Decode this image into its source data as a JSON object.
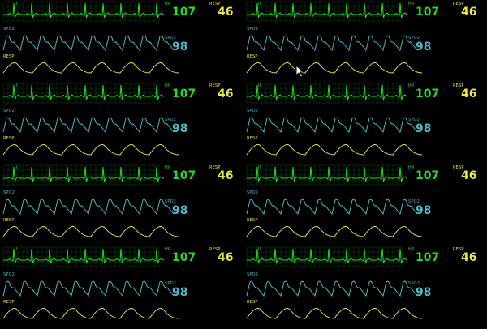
{
  "colors": {
    "ecg": "#22dd22",
    "grid": "#0b4a14",
    "spo2": "#4fb8c4",
    "resp": "#e8e84a",
    "background": "#000000"
  },
  "panels": [
    {
      "ecg_lead": "II",
      "hr_label": "HR",
      "hr_value": "107",
      "resp_label": "RESP",
      "resp_value": "46",
      "spo2_label": "SPO2",
      "spo2_value": "98",
      "resp_wave_label": "RESP"
    },
    {
      "ecg_lead": "II",
      "hr_label": "HR",
      "hr_value": "107",
      "resp_label": "RESP",
      "resp_value": "46",
      "spo2_label": "SPO2",
      "spo2_value": "98",
      "resp_wave_label": "RESP"
    },
    {
      "ecg_lead": "II",
      "hr_label": "HR",
      "hr_value": "107",
      "resp_label": "RESP",
      "resp_value": "46",
      "spo2_label": "SPO2",
      "spo2_value": "98",
      "resp_wave_label": "RESP"
    },
    {
      "ecg_lead": "II",
      "hr_label": "HR",
      "hr_value": "107",
      "resp_label": "RESP",
      "resp_value": "46",
      "spo2_label": "SPO2",
      "spo2_value": "98",
      "resp_wave_label": "RESP"
    },
    {
      "ecg_lead": "II",
      "hr_label": "HR",
      "hr_value": "107",
      "resp_label": "RESP",
      "resp_value": "46",
      "spo2_label": "SPO2",
      "spo2_value": "98",
      "resp_wave_label": "RESP"
    },
    {
      "ecg_lead": "II",
      "hr_label": "HR",
      "hr_value": "107",
      "resp_label": "RESP",
      "resp_value": "46",
      "spo2_label": "SPO2",
      "spo2_value": "98",
      "resp_wave_label": "RESP"
    },
    {
      "ecg_lead": "II",
      "hr_label": "HR",
      "hr_value": "107",
      "resp_label": "RESP",
      "resp_value": "46",
      "spo2_label": "SPO2",
      "spo2_value": "98",
      "resp_wave_label": "RESP"
    },
    {
      "ecg_lead": "II",
      "hr_label": "HR",
      "hr_value": "107",
      "resp_label": "RESP",
      "resp_value": "46",
      "spo2_label": "SPO2",
      "spo2_value": "98",
      "resp_wave_label": "RESP"
    }
  ],
  "cursor_icon": "arrow-pointer"
}
